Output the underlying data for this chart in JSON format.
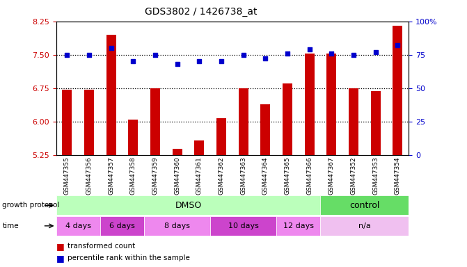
{
  "title": "GDS3802 / 1426738_at",
  "samples": [
    "GSM447355",
    "GSM447356",
    "GSM447357",
    "GSM447358",
    "GSM447359",
    "GSM447360",
    "GSM447361",
    "GSM447362",
    "GSM447363",
    "GSM447364",
    "GSM447365",
    "GSM447366",
    "GSM447367",
    "GSM447352",
    "GSM447353",
    "GSM447354"
  ],
  "transformed_count": [
    6.72,
    6.72,
    7.95,
    6.05,
    6.75,
    5.38,
    5.58,
    6.08,
    6.75,
    6.38,
    6.85,
    7.52,
    7.52,
    6.75,
    6.68,
    8.15
  ],
  "percentile_rank": [
    75,
    75,
    80,
    70,
    75,
    68,
    70,
    70,
    75,
    72,
    76,
    79,
    76,
    75,
    77,
    82
  ],
  "bar_color": "#cc0000",
  "dot_color": "#0000cc",
  "ylim_left": [
    5.25,
    8.25
  ],
  "ylim_right": [
    0,
    100
  ],
  "yticks_left": [
    5.25,
    6.0,
    6.75,
    7.5,
    8.25
  ],
  "yticks_right": [
    0,
    25,
    50,
    75,
    100
  ],
  "grid_values": [
    6.0,
    6.75,
    7.5
  ],
  "dmso_color": "#bbffbb",
  "control_color": "#66dd66",
  "time_colors": [
    "#ee88ee",
    "#cc44cc",
    "#ee88ee",
    "#cc44cc",
    "#ee88ee",
    "#f0c0f0"
  ],
  "time_labels": [
    {
      "label": "4 days",
      "start": 0,
      "end": 2
    },
    {
      "label": "6 days",
      "start": 2,
      "end": 4
    },
    {
      "label": "8 days",
      "start": 4,
      "end": 7
    },
    {
      "label": "10 days",
      "start": 7,
      "end": 10
    },
    {
      "label": "12 days",
      "start": 10,
      "end": 12
    },
    {
      "label": "n/a",
      "start": 12,
      "end": 16
    }
  ],
  "background_color": "#ffffff",
  "tick_label_color_left": "#cc0000",
  "tick_label_color_right": "#0000cc"
}
